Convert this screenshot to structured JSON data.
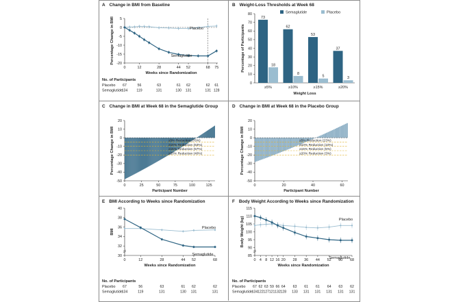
{
  "colors": {
    "dark": "#2e6483",
    "light": "#9bbdd0",
    "ref": "#e0b331",
    "axis": "#222222"
  },
  "chart_data": [
    {
      "id": "A",
      "type": "line",
      "title": "Change in BMI from Baseline",
      "xlabel": "Weeks since Randomization",
      "ylabel": "Percentage Change in BMI",
      "xticks": [
        0,
        12,
        28,
        44,
        52,
        68,
        75
      ],
      "yticks": [
        5,
        0,
        -5,
        -10,
        -15,
        -20
      ],
      "xlim": [
        0,
        76
      ],
      "ylim": [
        -20,
        5
      ],
      "series": [
        {
          "name": "Placebo",
          "x": [
            0,
            4,
            8,
            12,
            16,
            20,
            28,
            36,
            44,
            52,
            60,
            68,
            75
          ],
          "y": [
            0,
            0.2,
            0.3,
            0.6,
            0.5,
            0.4,
            -0.2,
            -0.3,
            -0.6,
            -0.6,
            -0.2,
            0.6,
            0.8
          ]
        },
        {
          "name": "Semaglutide",
          "x": [
            0,
            4,
            8,
            12,
            16,
            20,
            28,
            36,
            44,
            52,
            60,
            68,
            75
          ],
          "y": [
            0,
            -1.6,
            -3.2,
            -5,
            -6.9,
            -8.6,
            -12,
            -14,
            -15.2,
            -15.8,
            -16,
            -16,
            -13.2
          ]
        }
      ],
      "participants": {
        "heading": "No. of Participants",
        "weeks": [
          0,
          12,
          28,
          44,
          52,
          68,
          75
        ],
        "rows": [
          {
            "label": "Placebo",
            "values": [
              "67",
              "56",
              "63",
              "61",
              "62",
              "62",
              "61"
            ]
          },
          {
            "label": "Semaglutide",
            "values": [
              "134",
              "119",
              "131",
              "130",
              "131",
              "131",
              "128"
            ]
          }
        ]
      }
    },
    {
      "id": "B",
      "type": "bar",
      "title": "Weight-Loss Thresholds at Week 68",
      "xlabel": "Weight Loss",
      "ylabel": "Percentage of Participants",
      "categories": [
        "≥5%",
        "≥10%",
        "≥15%",
        "≥20%"
      ],
      "series": [
        {
          "name": "Semaglutide",
          "values": [
            73,
            62,
            53,
            37
          ]
        },
        {
          "name": "Placebo",
          "values": [
            18,
            8,
            5,
            3
          ]
        }
      ],
      "yticks": [
        0,
        10,
        20,
        30,
        40,
        50,
        60,
        70,
        80
      ],
      "ylim": [
        0,
        80
      ]
    },
    {
      "id": "C",
      "type": "bar",
      "title": "Change in BMI at Week 68 in the Semaglutide Group",
      "xlabel": "Participant Number",
      "ylabel": "Percentage Change in BMI",
      "xticks": [
        0,
        25,
        50,
        75,
        100,
        125
      ],
      "yticks": [
        20,
        10,
        0,
        -10,
        -20,
        -30,
        -40,
        -50
      ],
      "ylim": [
        -50,
        20
      ],
      "n": 134,
      "range": [
        -48,
        14
      ],
      "reference_lines": [
        {
          "value": -5,
          "label": "≥5% Reduction (76%)"
        },
        {
          "value": -10,
          "label": "≥10% Reduction (63%)"
        },
        {
          "value": -15,
          "label": "≥15% Reduction (57%)"
        },
        {
          "value": -20,
          "label": "≥20% Reduction (40%)"
        }
      ]
    },
    {
      "id": "D",
      "type": "bar",
      "title": "Change in BMI at Week 68 in the Placebo Group",
      "xlabel": "Participant Number",
      "ylabel": "Percentage Change in BMI",
      "xticks": [
        0,
        20,
        40,
        60
      ],
      "yticks": [
        20,
        10,
        0,
        -10,
        -20,
        -30,
        -40,
        -50
      ],
      "ylim": [
        -50,
        20
      ],
      "n": 64,
      "range": [
        -28,
        17
      ],
      "reference_lines": [
        {
          "value": -5,
          "label": "≥5% Reduction (23%)"
        },
        {
          "value": -10,
          "label": "≥10% Reduction (10%)"
        },
        {
          "value": -15,
          "label": "≥15% Reduction (5%)"
        },
        {
          "value": -20,
          "label": "≥20% Reduction (3%)"
        }
      ]
    },
    {
      "id": "E",
      "type": "line",
      "title": "BMI According to Weeks since Randomization",
      "xlabel": "Weeks since Randomization",
      "ylabel": "BMI",
      "xticks": [
        0,
        12,
        28,
        44,
        52,
        68
      ],
      "yticks": [
        40,
        38,
        36,
        34,
        32,
        30
      ],
      "xlim": [
        0,
        68
      ],
      "ylim": [
        30,
        40
      ],
      "y_axis_break": true,
      "series": [
        {
          "name": "Placebo",
          "x": [
            0,
            12,
            28,
            44,
            52,
            68
          ],
          "y": [
            35.7,
            35.7,
            35.4,
            35.1,
            35.3,
            35.4
          ]
        },
        {
          "name": "Semaglutide",
          "x": [
            0,
            12,
            28,
            44,
            52,
            68
          ],
          "y": [
            37.7,
            35.9,
            33.4,
            32.1,
            31.8,
            31.8
          ]
        }
      ],
      "participants": {
        "heading": "No. of Participants",
        "weeks": [
          0,
          12,
          28,
          44,
          52,
          68
        ],
        "rows": [
          {
            "label": "Placebo",
            "values": [
              "67",
              "56",
              "63",
              "61",
              "62",
              "62"
            ]
          },
          {
            "label": "Semaglutide",
            "values": [
              "134",
              "119",
              "131",
              "130",
              "131",
              "131"
            ]
          }
        ]
      }
    },
    {
      "id": "F",
      "type": "line",
      "title": "Body Weight According to Weeks since Randomization",
      "xlabel": "Weeks since Randomization",
      "ylabel": "Body Weight (kg)",
      "xticks": [
        0,
        4,
        8,
        12,
        16,
        20,
        28,
        36,
        44,
        52,
        60,
        68
      ],
      "yticks": [
        115,
        110,
        105,
        100,
        95,
        90,
        85
      ],
      "xlim": [
        0,
        68
      ],
      "ylim": [
        85,
        115
      ],
      "y_axis_break": true,
      "series": [
        {
          "name": "Placebo",
          "x": [
            0,
            4,
            8,
            12,
            16,
            20,
            28,
            36,
            44,
            52,
            60,
            68
          ],
          "y": [
            104,
            104.5,
            104.8,
            105,
            104.5,
            104,
            103.5,
            102.8,
            102.5,
            103,
            104,
            104
          ]
        },
        {
          "name": "Semaglutide",
          "x": [
            0,
            4,
            8,
            12,
            16,
            20,
            28,
            36,
            44,
            52,
            60,
            68
          ],
          "y": [
            110,
            109,
            107.5,
            106,
            104,
            102.5,
            99.5,
            97,
            96,
            95,
            94.6,
            94.6
          ]
        }
      ],
      "participants": {
        "heading": "No. of Participants",
        "weeks": [
          0,
          4,
          8,
          12,
          16,
          20,
          28,
          36,
          44,
          52,
          60,
          68
        ],
        "rows": [
          {
            "label": "Placebo",
            "values": [
              "67",
              "62",
              "63",
              "59",
              "66",
              "64",
              "63",
              "61",
              "61",
              "64",
              "63",
              "62"
            ]
          },
          {
            "label": "Semaglutide",
            "values": [
              "134",
              "122",
              "127",
              "121",
              "132",
              "128",
              "133",
              "131",
              "131",
              "131",
              "131",
              "131"
            ]
          }
        ]
      }
    }
  ]
}
